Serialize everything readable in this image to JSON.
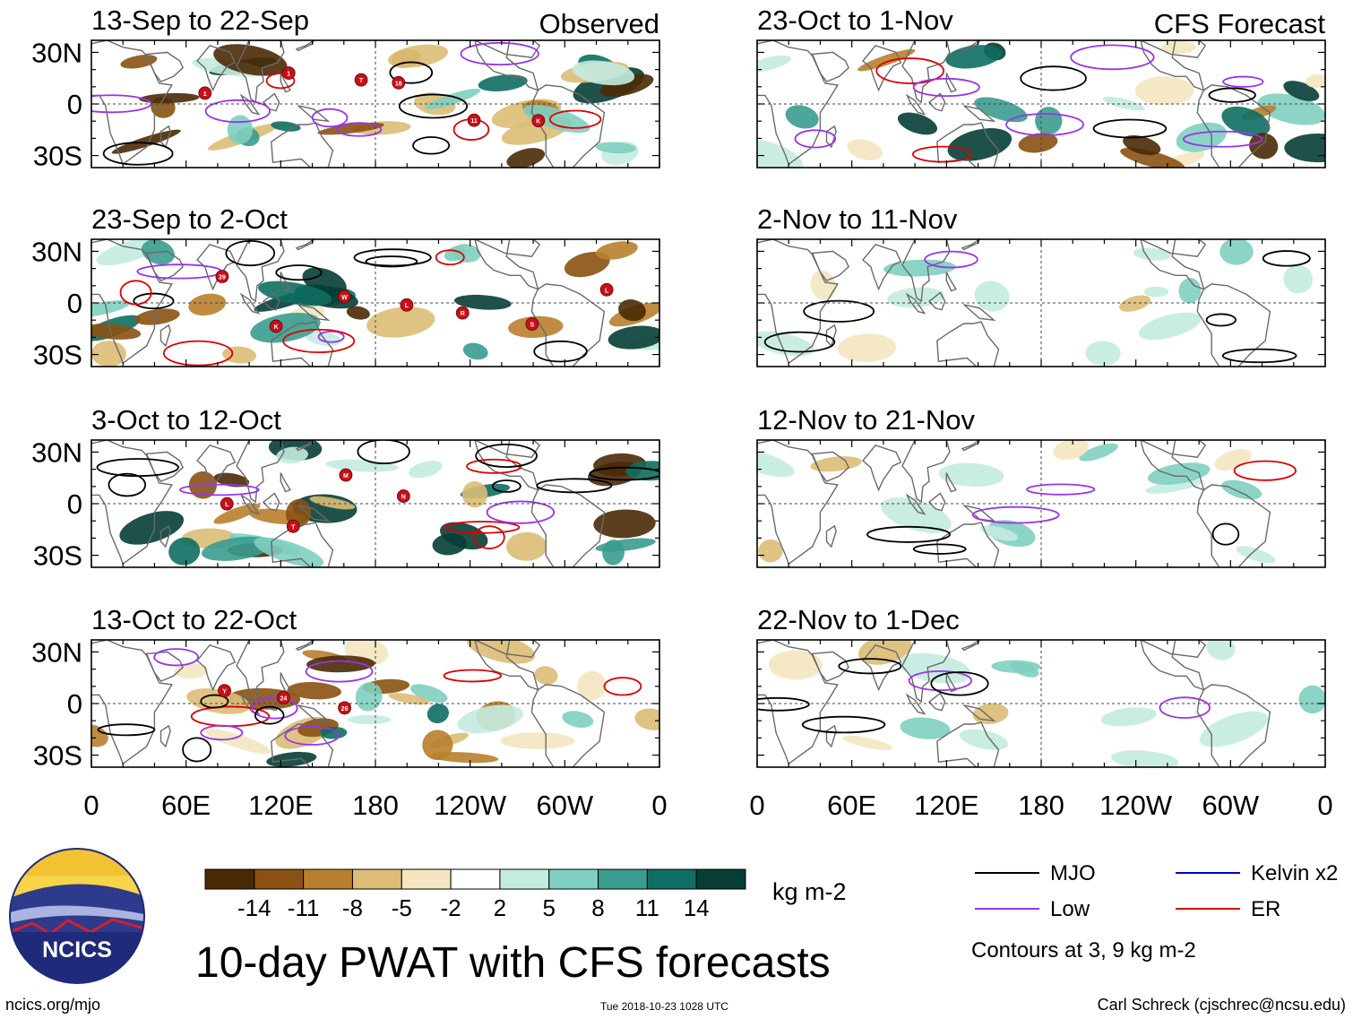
{
  "main_title": "10-day PWAT with CFS forecasts",
  "logo_text": "NCICS",
  "website": "ncics.org/mjo",
  "timestamp": "Tue 2018-10-23 1028 UTC",
  "author": "Carl Schreck (cjschrec@ncsu.edu)",
  "observed_label": "Observed",
  "forecast_label": "CFS Forecast",
  "lat_labels": [
    "30N",
    "0",
    "30S"
  ],
  "lon_labels": [
    "0",
    "60E",
    "120E",
    "180",
    "120W",
    "60W",
    "0"
  ],
  "panels": [
    {
      "title": "13-Sep to 22-Sep",
      "storms": [
        "1",
        "1",
        "T",
        "16",
        "11",
        "K"
      ]
    },
    {
      "title": "23-Sep to 2-Oct",
      "storms": [
        "29",
        "K",
        "W",
        "L",
        "R",
        "S",
        "L"
      ]
    },
    {
      "title": "3-Oct to 12-Oct",
      "storms": [
        "L",
        "T",
        "M",
        "N"
      ]
    },
    {
      "title": "13-Oct to 22-Oct",
      "storms": [
        "Y",
        "24",
        "26"
      ]
    },
    {
      "title": "23-Oct to 1-Nov",
      "storms": []
    },
    {
      "title": "2-Nov to 11-Nov",
      "storms": []
    },
    {
      "title": "12-Nov to 21-Nov",
      "storms": []
    },
    {
      "title": "22-Nov to 1-Dec",
      "storms": []
    }
  ],
  "colorbar": {
    "units": "kg m-2",
    "tick_labels": [
      "-14",
      "-11",
      "-8",
      "-5",
      "-2",
      "2",
      "5",
      "8",
      "11",
      "14"
    ],
    "colors": [
      "#4a2a06",
      "#8a5212",
      "#b8802e",
      "#dcbc76",
      "#f4e6c0",
      "#ffffff",
      "#c4ebe0",
      "#7ecfc0",
      "#3a9c8e",
      "#0e6e62",
      "#063e36"
    ]
  },
  "legend": {
    "items": [
      {
        "label": "MJO",
        "color": "#000000"
      },
      {
        "label": "Kelvin x2",
        "color": "#0000cc"
      },
      {
        "label": "Low",
        "color": "#9933ee"
      },
      {
        "label": "ER",
        "color": "#dd0000"
      }
    ],
    "note": "Contours at 3, 9 kg m-2"
  }
}
